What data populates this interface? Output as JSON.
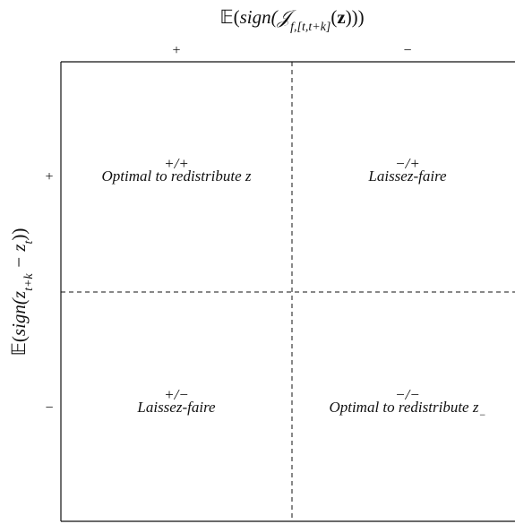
{
  "x_axis": {
    "title": [
      "𝔼(",
      "sign",
      "(𝒥",
      "f,[t,t+k]",
      "(",
      "z",
      ")))"
    ],
    "labels": [
      "+",
      "−"
    ]
  },
  "y_axis": {
    "title": [
      "𝔼(",
      "sign",
      "(z",
      "t+k",
      " − z",
      "t",
      "))"
    ],
    "labels": [
      "+",
      "−"
    ]
  },
  "quadrants": [
    {
      "sign": "+/+",
      "label": [
        "Optimal to redistribute z"
      ]
    },
    {
      "sign": "−/+",
      "label": [
        "Laissez-faire"
      ]
    },
    {
      "sign": "+/−",
      "label": [
        "Laissez-faire"
      ]
    },
    {
      "sign": "−/−",
      "label": [
        "Optimal to redistribute z",
        "−"
      ]
    }
  ]
}
